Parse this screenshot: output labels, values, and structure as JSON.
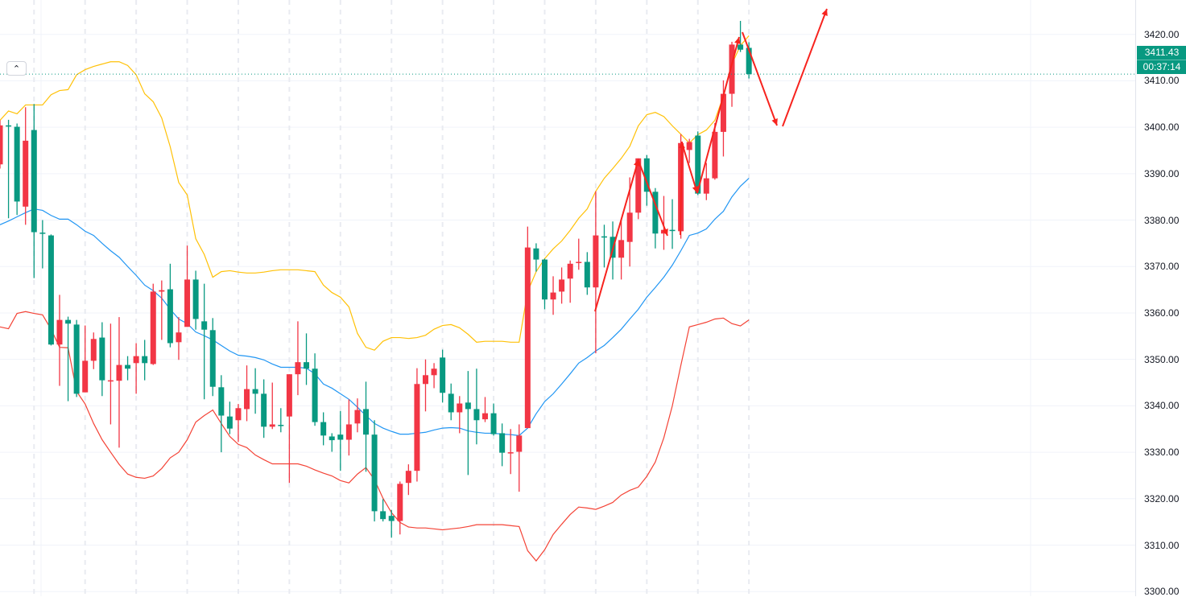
{
  "chart_data": {
    "type": "candlestick",
    "up_color": "#F23645",
    "down_color": "#089981",
    "ylim": [
      3299,
      3427.4
    ],
    "grid": true,
    "y_ticks": [
      "3420.00",
      "3410.00",
      "3400.00",
      "3390.00",
      "3380.00",
      "3370.00",
      "3360.00",
      "3350.00",
      "3340.00",
      "3330.00",
      "3320.00",
      "3310.00",
      "3300.00"
    ],
    "current_price": "3411.43",
    "countdown": "00:37:14",
    "ohlc": [
      [
        3392.0,
        3401.5,
        3391.1,
        3400.4
      ],
      [
        3400.4,
        3401.6,
        3380.4,
        3400.3
      ],
      [
        3400.1,
        3400.8,
        3381.1,
        3384.0
      ],
      [
        3382.9,
        3404.3,
        3379.0,
        3397.1
      ],
      [
        3399.4,
        3405.0,
        3367.5,
        3377.4
      ],
      [
        3377.3,
        3380.0,
        3369.6,
        3377.1
      ],
      [
        3376.7,
        3376.9,
        3353.0,
        3353.2
      ],
      [
        3353.2,
        3363.9,
        3344.3,
        3358.5
      ],
      [
        3358.5,
        3359.2,
        3341.0,
        3357.7
      ],
      [
        3357.5,
        3358.5,
        3341.9,
        3342.6
      ],
      [
        3342.9,
        3357.3,
        3342.9,
        3349.7
      ],
      [
        3349.7,
        3355.8,
        3347.9,
        3354.4
      ],
      [
        3354.7,
        3358.0,
        3342.1,
        3345.5
      ],
      [
        3345.3,
        3357.7,
        3336.0,
        3345.5
      ],
      [
        3345.4,
        3359.1,
        3331.0,
        3348.8
      ],
      [
        3348.8,
        3350.7,
        3345.5,
        3348.0
      ],
      [
        3349.2,
        3353.5,
        3342.6,
        3350.7
      ],
      [
        3350.7,
        3354.2,
        3345.5,
        3349.2
      ],
      [
        3349.0,
        3366.3,
        3348.8,
        3364.6
      ],
      [
        3364.6,
        3367.0,
        3354.2,
        3364.9
      ],
      [
        3365.1,
        3370.6,
        3352.6,
        3353.5
      ],
      [
        3353.7,
        3359.1,
        3349.9,
        3355.8
      ],
      [
        3357.0,
        3374.5,
        3357.0,
        3367.2
      ],
      [
        3367.2,
        3369.1,
        3356.4,
        3358.7
      ],
      [
        3358.2,
        3366.3,
        3341.4,
        3356.4
      ],
      [
        3356.3,
        3358.9,
        3342.1,
        3344.1
      ],
      [
        3344.0,
        3346.6,
        3330.0,
        3337.9
      ],
      [
        3337.7,
        3340.9,
        3333.9,
        3335.1
      ],
      [
        3336.9,
        3340.4,
        3332.2,
        3339.5
      ],
      [
        3339.3,
        3348.7,
        3336.7,
        3343.6
      ],
      [
        3343.6,
        3348.1,
        3338.3,
        3342.6
      ],
      [
        3342.6,
        3345.7,
        3333.1,
        3335.5
      ],
      [
        3335.5,
        3345.0,
        3335.0,
        3336.0
      ],
      [
        3335.9,
        3339.5,
        3334.3,
        3335.8
      ],
      [
        3337.7,
        3346.8,
        3323.4,
        3346.8
      ],
      [
        3346.8,
        3358.2,
        3342.3,
        3349.4
      ],
      [
        3349.4,
        3355.6,
        3344.5,
        3348.0
      ],
      [
        3348.0,
        3351.3,
        3335.7,
        3336.5
      ],
      [
        3336.5,
        3338.6,
        3331.5,
        3333.6
      ],
      [
        3333.4,
        3334.1,
        3330.1,
        3332.6
      ],
      [
        3333.8,
        3338.9,
        3326.0,
        3332.7
      ],
      [
        3332.7,
        3341.4,
        3329.3,
        3336.0
      ],
      [
        3336.2,
        3341.6,
        3334.3,
        3339.1
      ],
      [
        3339.3,
        3345.2,
        3325.8,
        3333.8
      ],
      [
        3333.8,
        3336.9,
        3315.1,
        3317.3
      ],
      [
        3317.3,
        3319.9,
        3315.1,
        3315.6
      ],
      [
        3316.3,
        3317.6,
        3311.6,
        3315.2
      ],
      [
        3315.2,
        3323.7,
        3312.3,
        3323.2
      ],
      [
        3323.4,
        3327.4,
        3320.8,
        3326.0
      ],
      [
        3326.0,
        3348.1,
        3323.7,
        3344.7
      ],
      [
        3344.7,
        3350.0,
        3338.8,
        3346.6
      ],
      [
        3346.6,
        3349.2,
        3343.8,
        3348.0
      ],
      [
        3350.4,
        3352.1,
        3340.7,
        3342.8
      ],
      [
        3342.6,
        3344.8,
        3336.9,
        3338.6
      ],
      [
        3338.6,
        3342.1,
        3334.1,
        3340.5
      ],
      [
        3340.7,
        3347.5,
        3325.1,
        3339.3
      ],
      [
        3339.3,
        3348.0,
        3331.7,
        3336.9
      ],
      [
        3337.1,
        3341.9,
        3336.5,
        3338.4
      ],
      [
        3338.4,
        3340.5,
        3333.6,
        3333.9
      ],
      [
        3334.1,
        3336.2,
        3327.0,
        3329.9
      ],
      [
        3329.9,
        3335.0,
        3325.3,
        3330.0
      ],
      [
        3330.1,
        3336.0,
        3321.5,
        3333.6
      ],
      [
        3335.2,
        3378.6,
        3335.2,
        3374.1
      ],
      [
        3373.9,
        3375.0,
        3368.9,
        3371.5
      ],
      [
        3371.5,
        3371.7,
        3360.8,
        3362.9
      ],
      [
        3362.9,
        3367.9,
        3359.6,
        3364.4
      ],
      [
        3364.6,
        3369.8,
        3362.0,
        3367.2
      ],
      [
        3367.4,
        3371.3,
        3362.2,
        3370.6
      ],
      [
        3370.8,
        3376.0,
        3369.3,
        3371.0
      ],
      [
        3371.0,
        3373.1,
        3363.9,
        3365.5
      ],
      [
        3365.5,
        3386.2,
        3351.3,
        3376.7
      ],
      [
        3376.5,
        3379.0,
        3369.8,
        3376.4
      ],
      [
        3376.4,
        3379.7,
        3367.2,
        3371.9
      ],
      [
        3371.9,
        3380.0,
        3367.2,
        3375.7
      ],
      [
        3375.3,
        3389.2,
        3370.0,
        3381.6
      ],
      [
        3381.6,
        3393.3,
        3380.2,
        3393.3
      ],
      [
        3393.3,
        3394.0,
        3383.1,
        3386.1
      ],
      [
        3386.1,
        3386.9,
        3373.9,
        3377.1
      ],
      [
        3377.1,
        3385.2,
        3373.6,
        3377.9
      ],
      [
        3377.9,
        3384.5,
        3373.8,
        3377.8
      ],
      [
        3377.6,
        3398.5,
        3376.0,
        3396.6
      ],
      [
        3395.1,
        3397.5,
        3392.3,
        3396.8
      ],
      [
        3398.2,
        3399.1,
        3385.4,
        3385.7
      ],
      [
        3385.7,
        3392.3,
        3384.3,
        3389.0
      ],
      [
        3389.0,
        3400.9,
        3388.7,
        3399.0
      ],
      [
        3399.0,
        3410.1,
        3393.7,
        3407.2
      ],
      [
        3407.2,
        3418.4,
        3404.4,
        3417.8
      ],
      [
        3417.8,
        3422.9,
        3416.2,
        3416.7
      ],
      [
        3417.1,
        3418.3,
        3410.5,
        3411.43
      ]
    ],
    "bollinger": {
      "upper_color": "#FFC107",
      "middle_color": "#2196F3",
      "lower_color": "#F44336",
      "upper": [
        3401.5,
        3403.5,
        3402.9,
        3404.8,
        3404.8,
        3404.8,
        3407.0,
        3407.9,
        3408.1,
        3411.3,
        3412.4,
        3413.1,
        3413.6,
        3414.1,
        3414.1,
        3413.3,
        3411.3,
        3407.2,
        3405.5,
        3402.0,
        3395.8,
        3388.1,
        3385.4,
        3376.0,
        3372.6,
        3367.7,
        3368.9,
        3369.1,
        3368.8,
        3368.6,
        3368.6,
        3368.8,
        3369.1,
        3369.3,
        3369.3,
        3369.3,
        3369.1,
        3368.9,
        3366.0,
        3364.4,
        3363.4,
        3361.3,
        3355.6,
        3352.6,
        3352.0,
        3353.9,
        3354.7,
        3354.7,
        3354.5,
        3354.7,
        3355.2,
        3356.5,
        3357.3,
        3357.5,
        3356.8,
        3355.4,
        3353.7,
        3353.9,
        3353.9,
        3353.9,
        3353.7,
        3353.7,
        3364.6,
        3368.9,
        3371.7,
        3373.8,
        3375.5,
        3377.8,
        3380.4,
        3382.4,
        3386.2,
        3389.0,
        3391.1,
        3393.3,
        3395.9,
        3400.3,
        3402.7,
        3403.2,
        3402.3,
        3400.3,
        3398.5,
        3396.6,
        3398.4,
        3399.4,
        3401.5,
        3406.7,
        3413.6,
        3417.6,
        3419.7
      ],
      "middle": [
        3379.0,
        3379.8,
        3380.7,
        3381.6,
        3382.4,
        3382.1,
        3381.0,
        3380.2,
        3380.2,
        3379.0,
        3377.6,
        3376.7,
        3375.0,
        3373.4,
        3372.0,
        3370.0,
        3368.1,
        3366.0,
        3364.8,
        3363.2,
        3360.8,
        3358.7,
        3357.7,
        3355.9,
        3355.1,
        3354.2,
        3353.0,
        3351.8,
        3350.9,
        3350.7,
        3350.4,
        3349.9,
        3349.0,
        3348.3,
        3348.3,
        3348.3,
        3348.1,
        3346.9,
        3344.7,
        3343.8,
        3342.6,
        3341.4,
        3339.7,
        3337.9,
        3336.2,
        3335.2,
        3334.5,
        3333.9,
        3333.9,
        3334.1,
        3334.3,
        3334.8,
        3335.2,
        3335.3,
        3335.2,
        3334.6,
        3334.3,
        3334.1,
        3334.1,
        3333.9,
        3333.8,
        3333.6,
        3335.2,
        3338.3,
        3340.9,
        3342.6,
        3344.7,
        3346.9,
        3349.2,
        3350.4,
        3351.8,
        3353.0,
        3354.7,
        3356.5,
        3358.7,
        3360.8,
        3363.4,
        3365.5,
        3367.7,
        3370.3,
        3373.4,
        3376.7,
        3377.2,
        3378.1,
        3380.2,
        3381.9,
        3385.0,
        3387.3,
        3389.0
      ],
      "lower": [
        3357.0,
        3356.6,
        3359.9,
        3360.3,
        3359.9,
        3359.6,
        3356.5,
        3352.6,
        3352.5,
        3343.1,
        3340.4,
        3336.2,
        3332.7,
        3330.0,
        3327.4,
        3325.3,
        3324.6,
        3324.4,
        3324.9,
        3326.5,
        3328.8,
        3330.0,
        3332.7,
        3336.5,
        3337.9,
        3339.1,
        3336.2,
        3333.4,
        3331.7,
        3331.0,
        3329.4,
        3328.4,
        3327.5,
        3327.5,
        3327.5,
        3327.5,
        3327.0,
        3326.2,
        3325.5,
        3324.9,
        3323.9,
        3323.4,
        3325.3,
        3326.7,
        3324.1,
        3320.1,
        3317.0,
        3314.9,
        3313.9,
        3313.7,
        3313.7,
        3313.5,
        3313.3,
        3313.5,
        3313.7,
        3314.0,
        3314.4,
        3314.4,
        3314.4,
        3314.4,
        3314.2,
        3314.0,
        3308.8,
        3306.6,
        3309.0,
        3312.3,
        3314.5,
        3316.6,
        3318.2,
        3318.0,
        3317.7,
        3318.4,
        3319.2,
        3320.8,
        3321.8,
        3322.5,
        3324.8,
        3327.9,
        3333.1,
        3340.0,
        3348.7,
        3357.0,
        3357.5,
        3358.0,
        3358.7,
        3358.9,
        3357.7,
        3357.2,
        3358.5
      ]
    },
    "drawing_color": "#F7231E"
  },
  "controls": {
    "collapse_icon": "chevron-up-icon",
    "collapse_glyph": "⌃"
  }
}
